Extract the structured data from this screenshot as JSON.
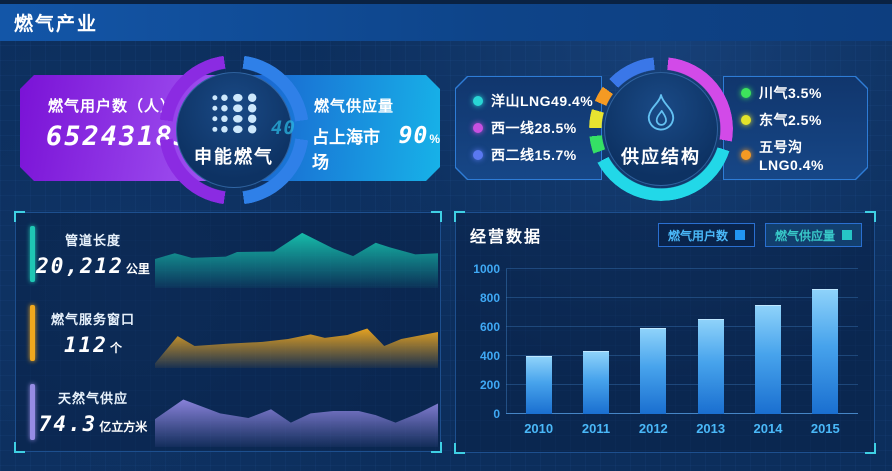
{
  "header": {
    "title": "燃气产业"
  },
  "users_card": {
    "label": "燃气用户数（人）",
    "value": "65243183"
  },
  "company_circle": {
    "name": "申能燃气",
    "watermark": "40",
    "ring_segments": [
      {
        "color": "#2f80e8",
        "from": 8,
        "to": 82
      },
      {
        "color": "#2f80e8",
        "from": 98,
        "to": 172
      },
      {
        "color": "#8b2be2",
        "from": 188,
        "to": 262
      },
      {
        "color": "#8b2be2",
        "from": 278,
        "to": 352
      }
    ]
  },
  "supply_card": {
    "label": "燃气供应量",
    "prefix": "占上海市场",
    "value": "90",
    "unit": "%"
  },
  "structure": {
    "center_label": "供应结构",
    "left_legend": [
      {
        "label": "洋山LNG49.4%",
        "color": "#29d5d5"
      },
      {
        "label": "西一线28.5%",
        "color": "#c750e0"
      },
      {
        "label": "西二线15.7%",
        "color": "#5a78f0"
      }
    ],
    "right_legend": [
      {
        "label": "川气3.5%",
        "color": "#3de45c"
      },
      {
        "label": "东气2.5%",
        "color": "#e3e32a"
      },
      {
        "label": "五号沟LNG0.4%",
        "color": "#f59a23"
      }
    ]
  },
  "metrics_panel": {
    "items": [
      {
        "label": "管道长度",
        "value": "20,212",
        "unit": "公里",
        "color": "#1fc7b4",
        "chart_index": 0
      },
      {
        "label": "燃气服务窗口",
        "value": "112",
        "unit": "个",
        "color": "#f0a81e",
        "chart_index": 1
      },
      {
        "label": "天然气供应",
        "value": "74.3",
        "unit": "亿立方米",
        "color": "#968ce4",
        "chart_index": 2
      }
    ]
  },
  "business_panel": {
    "title": "经营数据",
    "legend": [
      {
        "label": "燃气用户数",
        "swatch": "#2196f3",
        "active": true
      },
      {
        "label": "燃气供应量",
        "swatch": "#26c6c6",
        "active": false
      }
    ]
  },
  "chart_data": [
    {
      "id": "pipeline_trend",
      "type": "area",
      "title": "管道长度",
      "color": "#17c3ae",
      "grid": false,
      "x_pct": [
        0,
        7,
        13,
        25,
        29,
        42,
        52,
        63,
        70,
        78,
        83,
        92,
        100
      ],
      "h_pct": [
        50,
        60,
        52,
        54,
        62,
        63,
        95,
        68,
        55,
        78,
        70,
        58,
        60
      ]
    },
    {
      "id": "service_trend",
      "type": "area",
      "title": "燃气服务窗口",
      "color": "#f0a81e",
      "grid": false,
      "x_pct": [
        0,
        8,
        14,
        26,
        38,
        47,
        55,
        60,
        68,
        75,
        81,
        87,
        100
      ],
      "h_pct": [
        8,
        55,
        38,
        42,
        45,
        50,
        58,
        52,
        57,
        68,
        38,
        50,
        62
      ]
    },
    {
      "id": "supply_trend",
      "type": "area",
      "title": "天然气供应",
      "color": "#8f86e0",
      "grid": false,
      "x_pct": [
        0,
        10,
        23,
        33,
        41,
        48,
        55,
        63,
        72,
        78,
        85,
        93,
        100
      ],
      "h_pct": [
        48,
        82,
        58,
        50,
        65,
        42,
        58,
        62,
        62,
        55,
        42,
        58,
        75
      ]
    },
    {
      "id": "business_bars",
      "type": "bar",
      "title": "经营数据",
      "series_label": "燃气用户数",
      "categories": [
        "2010",
        "2011",
        "2012",
        "2013",
        "2014",
        "2015"
      ],
      "values": [
        400,
        435,
        590,
        655,
        750,
        860
      ],
      "xlabel": "",
      "ylabel": "",
      "ylim": [
        0,
        1000
      ],
      "yticks": [
        0,
        200,
        400,
        600,
        800,
        1000
      ],
      "grid": true,
      "legend_position": "top-right"
    },
    {
      "id": "supply_structure",
      "type": "pie",
      "title": "供应结构",
      "slices": [
        {
          "label": "洋山LNG",
          "value": 49.4,
          "color": "#22d8e8"
        },
        {
          "label": "西一线",
          "value": 28.5,
          "color": "#d24ae8"
        },
        {
          "label": "西二线",
          "value": 15.7,
          "color": "#3a77e8"
        },
        {
          "label": "川气",
          "value": 3.5,
          "color": "#35e065"
        },
        {
          "label": "东气",
          "value": 2.5,
          "color": "#e8e430"
        },
        {
          "label": "五号沟LNG",
          "value": 0.4,
          "color": "#f59a23"
        }
      ],
      "ring_segments": [
        {
          "color": "#d24ae8",
          "from": 6,
          "to": 100
        },
        {
          "color": "#22d8e8",
          "from": 108,
          "to": 242
        },
        {
          "color": "#35e065",
          "from": 250,
          "to": 264
        },
        {
          "color": "#e8e430",
          "from": 271,
          "to": 286
        },
        {
          "color": "#f59a23",
          "from": 293,
          "to": 306
        },
        {
          "color": "#3a77e8",
          "from": 314,
          "to": 354
        }
      ]
    }
  ]
}
